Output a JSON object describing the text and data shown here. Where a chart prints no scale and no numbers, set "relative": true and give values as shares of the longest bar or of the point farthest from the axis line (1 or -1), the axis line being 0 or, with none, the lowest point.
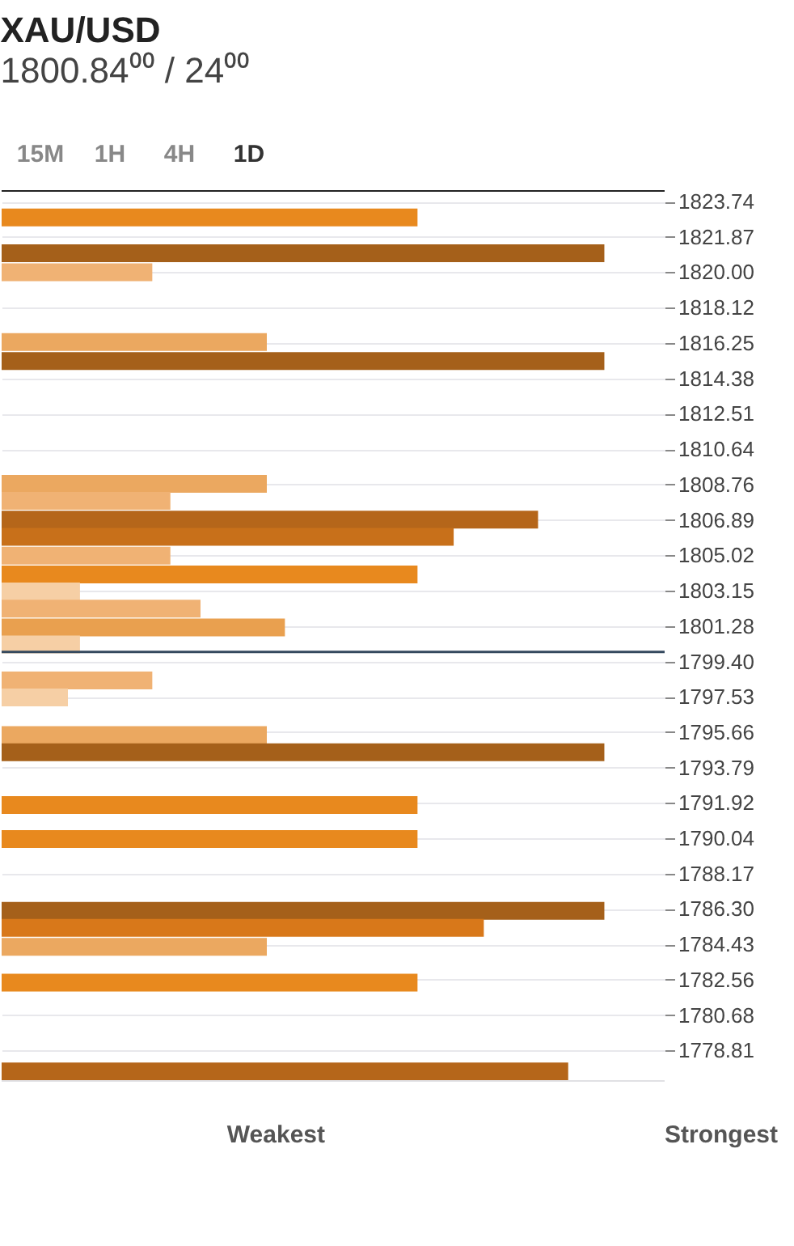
{
  "chart_data": {
    "type": "bar",
    "orientation": "horizontal",
    "relative": true,
    "title": "XAU/USD",
    "subtitle": "1800.84⁰⁰ / 24⁰⁰",
    "x": [
      1822.9,
      1821.0,
      1820.0,
      1816.3,
      1815.3,
      1808.8,
      1807.9,
      1806.9,
      1806.0,
      1805.0,
      1804.0,
      1803.1,
      1802.2,
      1801.2,
      1800.3,
      1798.4,
      1797.5,
      1795.5,
      1794.6,
      1791.8,
      1790.0,
      1786.2,
      1785.3,
      1784.3,
      1782.4,
      1777.7
    ],
    "values": [
      0.69,
      1,
      0.25,
      0.44,
      1,
      0.44,
      0.28,
      0.89,
      0.75,
      0.28,
      0.69,
      0.13,
      0.33,
      0.47,
      0.13,
      0.25,
      0.11,
      0.44,
      1,
      0.69,
      0.69,
      1,
      0.8,
      0.44,
      0.69,
      0.94
    ],
    "colors": [
      "#e8891e",
      "#a5601a",
      "#f0b274",
      "#eba860",
      "#a5601a",
      "#eba860",
      "#f0b274",
      "#b5661a",
      "#c8701a",
      "#f0b274",
      "#e8891e",
      "#f6cfa5",
      "#f0b274",
      "#e9a04f",
      "#f6cfa5",
      "#f0b274",
      "#f6cfa5",
      "#eba860",
      "#a5601a",
      "#e8891e",
      "#e8891e",
      "#a5601a",
      "#d8781a",
      "#eba860",
      "#e8891e",
      "#b5661a"
    ],
    "ylim": [
      1777.2,
      1824.3
    ],
    "yticks": [
      1823.74,
      1821.87,
      {
        "value": 1820,
        "label": "1820.00"
      },
      1818.12,
      1816.25,
      1814.38,
      1812.51,
      1810.64,
      1808.76,
      1806.89,
      1805.02,
      1803.15,
      1801.28,
      {
        "value": 1799.4,
        "label": "1799.40"
      },
      1797.53,
      1795.66,
      1793.79,
      1791.92,
      1790.04,
      1788.17,
      {
        "value": 1786.3,
        "label": "1786.30"
      },
      1784.43,
      1782.56,
      1780.68,
      1778.81
    ],
    "ref_lines": [
      {
        "axis": "y",
        "value": 1799.9,
        "color": "#34495e"
      }
    ],
    "grid": "y",
    "annotations": [
      "15M",
      "1H",
      "4H",
      "1D",
      "Weakest",
      "Strongest"
    ]
  }
}
